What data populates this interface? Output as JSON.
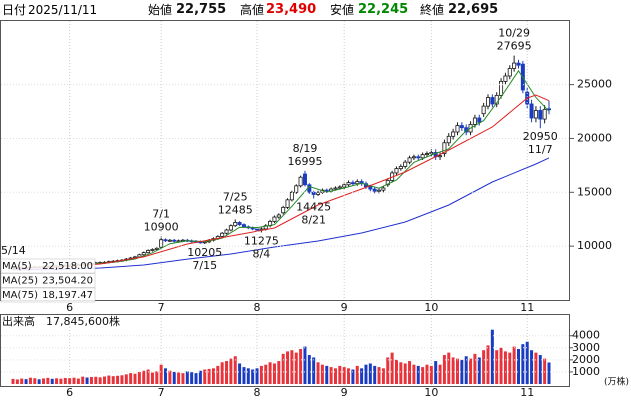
{
  "header": {
    "date_label": "日付",
    "date": "2025/11/11",
    "fields": [
      {
        "label": "始値",
        "value": "22,755",
        "color": "#111111"
      },
      {
        "label": "高値",
        "value": "23,490",
        "color": "#e00000"
      },
      {
        "label": "安値",
        "value": "22,245",
        "color": "#008800"
      },
      {
        "label": "終値",
        "value": "22,695",
        "color": "#111111"
      }
    ]
  },
  "chart_data": [
    {
      "type": "candlestick",
      "categories": [
        "5/14",
        null,
        null,
        null,
        null,
        null,
        null,
        null,
        null,
        null,
        null,
        null,
        null,
        null,
        null,
        null,
        null,
        null,
        null,
        null,
        null,
        null,
        null,
        null,
        null,
        null,
        null,
        null,
        null,
        null,
        null,
        null,
        null,
        null,
        "7/1",
        null,
        null,
        null,
        null,
        null,
        null,
        null,
        null,
        null,
        "7/15",
        null,
        null,
        null,
        null,
        null,
        null,
        "7/25",
        null,
        null,
        null,
        null,
        null,
        "8/4",
        null,
        null,
        null,
        null,
        null,
        null,
        null,
        null,
        null,
        "8/19",
        null,
        "8/21",
        null,
        null,
        null,
        null,
        null,
        null,
        null,
        null,
        null,
        null,
        null,
        null,
        null,
        null,
        null,
        null,
        null,
        null,
        null,
        null,
        null,
        null,
        null,
        null,
        null,
        null,
        null,
        null,
        null,
        null,
        null,
        null,
        null,
        null,
        null,
        null,
        null,
        null,
        null,
        null,
        null,
        null,
        null,
        null,
        null,
        "10/29",
        null,
        null,
        null,
        null,
        null,
        "11/7",
        null,
        null
      ],
      "open": [
        7900,
        7950,
        7980,
        8020,
        8000,
        8050,
        8080,
        8060,
        8100,
        8150,
        8120,
        8180,
        8200,
        8230,
        8250,
        8280,
        8300,
        8350,
        8330,
        8400,
        8450,
        8480,
        8500,
        8560,
        8600,
        8650,
        8700,
        8800,
        8900,
        9000,
        9200,
        9400,
        9600,
        9700,
        9900,
        10600,
        10500,
        10550,
        10450,
        10500,
        10550,
        10500,
        10450,
        10400,
        10350,
        10400,
        10550,
        10700,
        10900,
        11200,
        11500,
        11900,
        12200,
        12000,
        11800,
        11700,
        11600,
        11500,
        11600,
        11900,
        12300,
        12700,
        13100,
        13600,
        14300,
        15000,
        15600,
        16700,
        15700,
        15000,
        14800,
        15000,
        15200,
        15100,
        15300,
        15400,
        15500,
        15700,
        15900,
        15800,
        16000,
        15800,
        15500,
        15300,
        15100,
        15200,
        15700,
        16100,
        16800,
        17200,
        17400,
        17800,
        18200,
        18300,
        18200,
        18500,
        18600,
        18700,
        18300,
        18600,
        19600,
        20200,
        20600,
        21200,
        21000,
        20600,
        21300,
        21900,
        22300,
        23000,
        23800,
        23200,
        24000,
        25300,
        25800,
        26500,
        27000,
        26900,
        24300,
        23200,
        21900,
        22600,
        21800,
        22755
      ],
      "high": [
        8030,
        8060,
        8100,
        8100,
        8130,
        8160,
        8160,
        8180,
        8230,
        8230,
        8260,
        8280,
        8310,
        8350,
        8380,
        8400,
        8450,
        8450,
        8500,
        8550,
        8580,
        8600,
        8660,
        8700,
        8750,
        8800,
        8900,
        9000,
        9100,
        9300,
        9500,
        9700,
        9800,
        9900,
        10900,
        10720,
        10670,
        10670,
        10620,
        10670,
        10670,
        10620,
        10570,
        10520,
        10520,
        10670,
        10820,
        11020,
        11320,
        11620,
        12020,
        12485,
        12320,
        12120,
        11920,
        11820,
        11750,
        11750,
        12050,
        12450,
        12850,
        13050,
        13750,
        14450,
        15150,
        15750,
        16550,
        16995,
        15850,
        15150,
        15150,
        15350,
        15350,
        15450,
        15550,
        15650,
        15900,
        16100,
        16100,
        16200,
        16200,
        16000,
        15700,
        15500,
        15400,
        15600,
        16300,
        17000,
        17400,
        17600,
        18000,
        18400,
        18500,
        18500,
        18700,
        18800,
        19000,
        19000,
        18700,
        19900,
        20500,
        20900,
        21500,
        21500,
        21300,
        21600,
        22200,
        22200,
        23300,
        24100,
        24100,
        24300,
        25600,
        26100,
        26800,
        27695,
        27300,
        27200,
        24700,
        23600,
        23000,
        23000,
        23100,
        23490
      ],
      "low": [
        7820,
        7870,
        7900,
        7920,
        7920,
        7970,
        7980,
        7980,
        8020,
        8040,
        8040,
        8100,
        8120,
        8130,
        8150,
        8180,
        8200,
        8230,
        8230,
        8300,
        8350,
        8380,
        8400,
        8460,
        8500,
        8550,
        8600,
        8700,
        8800,
        8900,
        9100,
        9300,
        9500,
        9600,
        9780,
        10380,
        10380,
        10330,
        10330,
        10380,
        10380,
        10330,
        10280,
        10230,
        10205,
        10280,
        10430,
        10580,
        10780,
        11080,
        11380,
        11780,
        11880,
        11680,
        11580,
        11480,
        11350,
        11275,
        11450,
        11750,
        12150,
        12550,
        12950,
        13450,
        14150,
        14850,
        15450,
        15550,
        14850,
        14425,
        14650,
        14850,
        14950,
        14950,
        15150,
        15250,
        15300,
        15500,
        15600,
        15600,
        15600,
        15300,
        15100,
        14900,
        14900,
        15000,
        15500,
        15900,
        16600,
        17000,
        17200,
        17600,
        18000,
        18000,
        18000,
        18300,
        18300,
        18000,
        18000,
        18300,
        19300,
        19900,
        20300,
        20700,
        20300,
        20300,
        21000,
        21200,
        22000,
        22700,
        22900,
        22900,
        23700,
        25000,
        25500,
        26200,
        26500,
        24200,
        22800,
        21500,
        21500,
        20950,
        21400,
        22245
      ],
      "close": [
        7950,
        7980,
        8020,
        8000,
        8050,
        8080,
        8060,
        8100,
        8150,
        8120,
        8180,
        8200,
        8230,
        8250,
        8280,
        8300,
        8350,
        8330,
        8400,
        8450,
        8480,
        8500,
        8560,
        8600,
        8650,
        8700,
        8800,
        8900,
        9000,
        9200,
        9400,
        9600,
        9700,
        9800,
        10600,
        10500,
        10550,
        10450,
        10500,
        10550,
        10500,
        10450,
        10400,
        10350,
        10400,
        10550,
        10700,
        10900,
        11200,
        11500,
        11900,
        12200,
        12000,
        11800,
        11700,
        11600,
        11500,
        11600,
        11900,
        12300,
        12700,
        12900,
        13600,
        14300,
        15000,
        15600,
        16400,
        15700,
        15000,
        14800,
        15000,
        15200,
        15100,
        15300,
        15400,
        15500,
        15700,
        15900,
        15800,
        16000,
        15800,
        15500,
        15300,
        15100,
        15200,
        15400,
        16100,
        16800,
        17200,
        17400,
        17800,
        18200,
        18300,
        18200,
        18500,
        18600,
        18700,
        18300,
        18400,
        19600,
        20200,
        20600,
        21200,
        21000,
        20600,
        21300,
        21900,
        21500,
        23000,
        23800,
        23200,
        24000,
        25300,
        25800,
        26500,
        27000,
        26800,
        24500,
        23200,
        21900,
        22600,
        21800,
        22700,
        22695
      ],
      "up_color": "#ffffff",
      "up_stroke": "#1a1a1a",
      "down_color": "#1a3cc0",
      "series": [
        {
          "name": "MA(5)",
          "color": "#2a8a2a",
          "x": [
            4,
            8,
            12,
            16,
            20,
            24,
            28,
            32,
            36,
            40,
            44,
            48,
            52,
            56,
            60,
            64,
            68,
            72,
            76,
            80,
            84,
            88,
            92,
            96,
            100,
            104,
            108,
            112,
            116,
            120,
            123
          ],
          "values": [
            8000,
            8088,
            8176,
            8282,
            8402,
            8558,
            8810,
            9380,
            10230,
            10510,
            10420,
            10750,
            11760,
            11720,
            12000,
            13700,
            15540,
            15020,
            15400,
            15840,
            15380,
            16140,
            17780,
            18460,
            19040,
            20720,
            21660,
            23860,
            26280,
            23800,
            22518
          ],
          "value_labels": [
            null,
            null,
            null,
            null,
            null,
            null,
            null,
            null,
            null,
            null,
            null,
            null,
            null,
            null,
            null,
            null,
            null,
            null,
            null,
            null,
            null,
            null,
            null,
            null,
            null,
            null,
            null,
            null,
            null,
            null,
            "22,518.00"
          ]
        },
        {
          "name": "MA(25)",
          "color": "#e02020",
          "x": [
            0,
            10,
            20,
            30,
            40,
            50,
            60,
            70,
            80,
            90,
            100,
            110,
            118,
            120,
            123
          ],
          "values": [
            7900,
            8050,
            8340,
            9000,
            10200,
            10940,
            11690,
            13820,
            15310,
            16890,
            18930,
            21060,
            23750,
            24040,
            23504.2
          ],
          "value_labels": [
            null,
            null,
            null,
            null,
            null,
            null,
            null,
            null,
            null,
            null,
            null,
            null,
            null,
            null,
            "23,504.20"
          ]
        },
        {
          "name": "MA(75)",
          "color": "#2030d0",
          "x": [
            0,
            10,
            20,
            30,
            40,
            50,
            60,
            70,
            80,
            90,
            100,
            110,
            120,
            123
          ],
          "values": [
            7800,
            7820,
            7970,
            8250,
            8800,
            9270,
            9920,
            10480,
            11220,
            12240,
            13820,
            15960,
            17630,
            18197.47
          ],
          "value_labels": [
            null,
            null,
            null,
            null,
            null,
            null,
            null,
            null,
            null,
            null,
            null,
            null,
            null,
            "18,197.47"
          ]
        }
      ],
      "ylim": [
        5000,
        31000
      ],
      "yticks": [
        10000,
        15000,
        20000,
        25000
      ],
      "xticks": [
        {
          "value": 13,
          "label": "6"
        },
        {
          "value": 34,
          "label": "7"
        },
        {
          "value": 56,
          "label": "8"
        },
        {
          "value": 76,
          "label": "9"
        },
        {
          "value": 96,
          "label": "10"
        },
        {
          "value": 118,
          "label": "11"
        }
      ],
      "grid": true,
      "annotations": [
        {
          "category": "7/1",
          "value": 10900
        },
        {
          "category": "7/15",
          "value": 10205
        },
        {
          "category": "7/25",
          "value": 12485
        },
        {
          "category": "8/4",
          "value": 11275
        },
        {
          "category": "8/19",
          "value": 16995
        },
        {
          "category": "8/21",
          "value": 14425
        },
        {
          "category": "10/29",
          "value": 27695
        },
        {
          "category": "11/7",
          "value": 20950
        }
      ]
    },
    {
      "type": "bar",
      "title": "出来高",
      "subtitle": "17,845,600株",
      "unit_label": "(万株)",
      "values": [
        420,
        380,
        450,
        400,
        520,
        480,
        390,
        460,
        510,
        430,
        470,
        440,
        500,
        480,
        520,
        450,
        610,
        540,
        580,
        600,
        550,
        620,
        700,
        650,
        680,
        720,
        800,
        900,
        850,
        1000,
        1100,
        1200,
        950,
        1050,
        1600,
        1300,
        1100,
        1000,
        950,
        900,
        1050,
        980,
        900,
        1100,
        1200,
        1250,
        1300,
        1500,
        1800,
        1900,
        2100,
        2300,
        1700,
        1400,
        1300,
        1200,
        1300,
        1500,
        1600,
        1800,
        1700,
        1900,
        2500,
        2700,
        2800,
        2600,
        2900,
        3100,
        2400,
        2200,
        1800,
        1600,
        1500,
        1400,
        1300,
        1500,
        1400,
        1300,
        1200,
        1500,
        1300,
        1600,
        1700,
        1500,
        1400,
        1300,
        2200,
        2600,
        2000,
        1800,
        1700,
        1900,
        1600,
        1500,
        1400,
        1600,
        1500,
        1900,
        1600,
        2400,
        2600,
        2200,
        2100,
        2000,
        2300,
        2100,
        2500,
        2200,
        2800,
        3200,
        4500,
        2800,
        3000,
        2700,
        2600,
        3100,
        2900,
        3300,
        3500,
        2800,
        2600,
        2400,
        2100,
        1784.56
      ],
      "up_color": "#e8333b",
      "down_color": "#1a3cc0",
      "ylim": [
        0,
        5800
      ],
      "yticks": [
        1000,
        2000,
        3000,
        4000
      ],
      "xticks": [
        {
          "value": 13,
          "label": "6"
        },
        {
          "value": 34,
          "label": "7"
        },
        {
          "value": 56,
          "label": "8"
        },
        {
          "value": 76,
          "label": "9"
        },
        {
          "value": 96,
          "label": "10"
        },
        {
          "value": 118,
          "label": "11"
        }
      ],
      "grid": true
    }
  ]
}
